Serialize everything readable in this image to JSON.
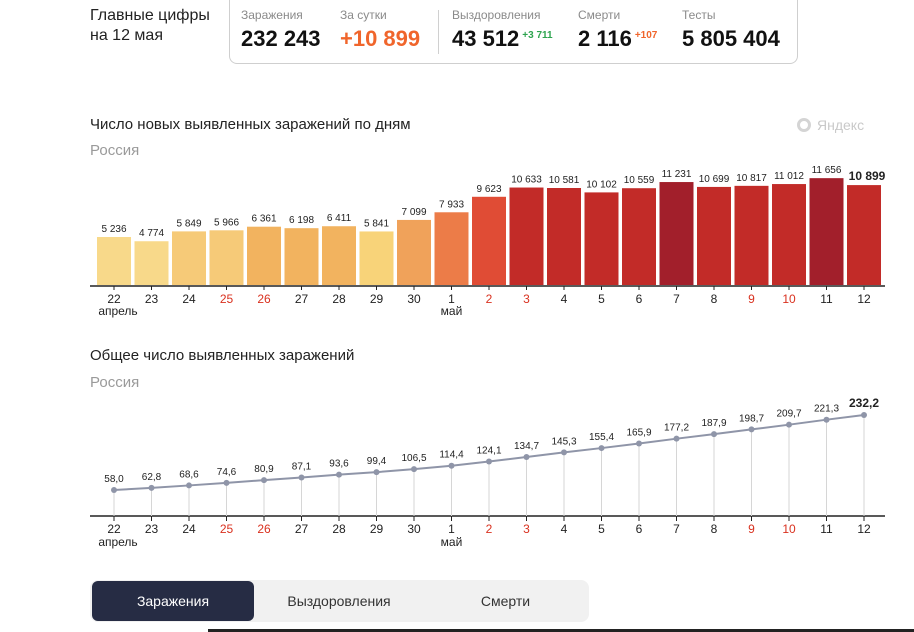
{
  "header": {
    "line1": "Главные цифры",
    "line2": "на 12 мая"
  },
  "stats": {
    "infections": {
      "label": "Заражения",
      "value": "232 243"
    },
    "daily": {
      "label": "За сутки",
      "value": "+10 899"
    },
    "recovered": {
      "label": "Выздоровления",
      "value": "43 512",
      "delta": "+3 711"
    },
    "deaths": {
      "label": "Смерти",
      "value": "2 116",
      "delta": "+107"
    },
    "tests": {
      "label": "Тесты",
      "value": "5 805 404"
    }
  },
  "brand": "Яндекс",
  "tabs": [
    "Заражения",
    "Выздоровления",
    "Смерти"
  ],
  "chart_data": [
    {
      "type": "bar",
      "title": "Число новых выявленных заражений по дням",
      "subtitle": "Россия",
      "categories": [
        "22",
        "23",
        "24",
        "25",
        "26",
        "27",
        "28",
        "29",
        "30",
        "1",
        "2",
        "3",
        "4",
        "5",
        "6",
        "7",
        "8",
        "9",
        "10",
        "11",
        "12"
      ],
      "month_labels": [
        {
          "index": 0,
          "text": "апрель"
        },
        {
          "index": 9,
          "text": "май"
        }
      ],
      "weekend_indices": [
        3,
        4,
        10,
        11,
        17,
        18
      ],
      "values": [
        5236,
        4774,
        5849,
        5966,
        6361,
        6198,
        6411,
        5841,
        7099,
        7933,
        9623,
        10633,
        10581,
        10102,
        10559,
        11231,
        10699,
        10817,
        11012,
        11656,
        10899
      ],
      "value_labels": [
        "5 236",
        "4 774",
        "5 849",
        "5 966",
        "6 361",
        "6 198",
        "6 411",
        "5 841",
        "7 099",
        "7 933",
        "9 623",
        "10 633",
        "10 581",
        "10 102",
        "10 559",
        "11 231",
        "10 699",
        "10 817",
        "11 012",
        "11 656",
        "10 899"
      ],
      "colors": [
        "#f8d98a",
        "#f8d98a",
        "#f6ca78",
        "#f6ca78",
        "#f2b35f",
        "#f2b35f",
        "#f2b35f",
        "#f8d379",
        "#f0a25a",
        "#ec7c48",
        "#e04c35",
        "#c22b28",
        "#c22b28",
        "#c22b28",
        "#c22b28",
        "#a21f2b",
        "#c22b28",
        "#c22b28",
        "#c22b28",
        "#a21f2b",
        "#c22b28"
      ],
      "ylim": [
        0,
        12000
      ]
    },
    {
      "type": "line",
      "title": "Общее число выявленных заражений",
      "subtitle": "Россия",
      "categories": [
        "22",
        "23",
        "24",
        "25",
        "26",
        "27",
        "28",
        "29",
        "30",
        "1",
        "2",
        "3",
        "4",
        "5",
        "6",
        "7",
        "8",
        "9",
        "10",
        "11",
        "12"
      ],
      "month_labels": [
        {
          "index": 0,
          "text": "апрель"
        },
        {
          "index": 9,
          "text": "май"
        }
      ],
      "weekend_indices": [
        3,
        4,
        10,
        11,
        17,
        18
      ],
      "values": [
        58.0,
        62.8,
        68.6,
        74.6,
        80.9,
        87.1,
        93.6,
        99.4,
        106.5,
        114.4,
        124.1,
        134.7,
        145.3,
        155.4,
        165.9,
        177.2,
        187.9,
        198.7,
        209.7,
        221.3,
        232.2
      ],
      "value_labels": [
        "58,0",
        "62,8",
        "68,6",
        "74,6",
        "80,9",
        "87,1",
        "93,6",
        "99,4",
        "106,5",
        "114,4",
        "124,1",
        "134,7",
        "145,3",
        "155,4",
        "165,9",
        "177,2",
        "187,9",
        "198,7",
        "209,7",
        "221,3",
        "232,2"
      ],
      "unit": "тыс.",
      "ylim": [
        0,
        250
      ]
    }
  ]
}
